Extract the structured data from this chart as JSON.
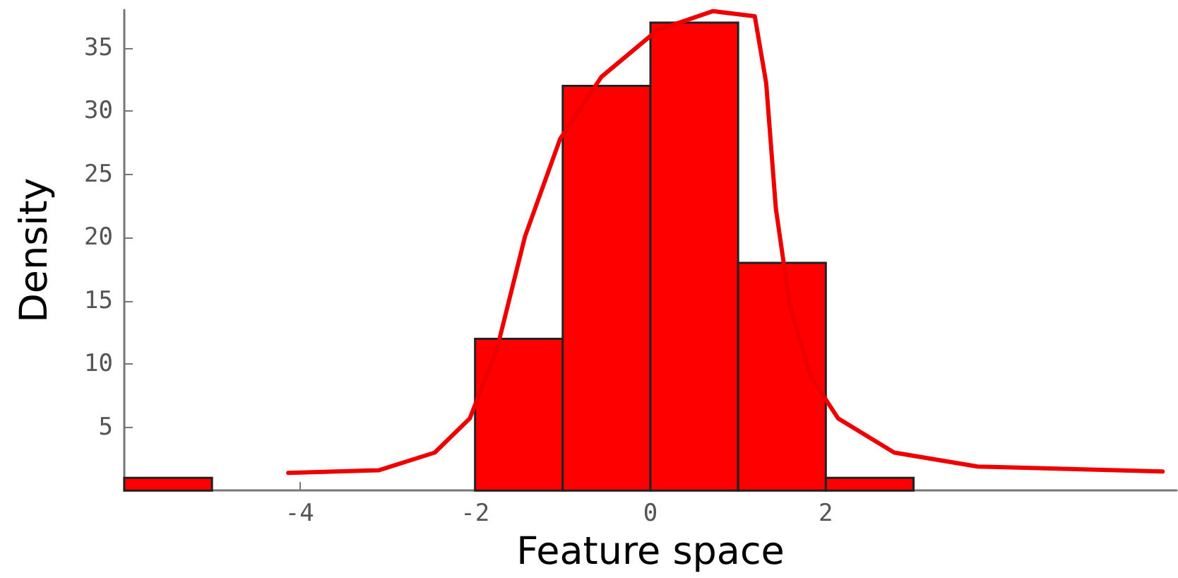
{
  "chart_data": {
    "type": "histogram",
    "xlabel": "Feature space",
    "ylabel": "Density",
    "bins": [
      -6,
      -5,
      -4,
      -3,
      -2,
      -1,
      0,
      1,
      2,
      3
    ],
    "values": [
      1,
      0,
      0,
      0,
      12,
      32,
      37,
      18,
      1
    ],
    "color": "#ff0000",
    "xlim": [
      -6,
      6
    ],
    "xticks": [
      -4,
      -2,
      0,
      2
    ],
    "ylim": [
      0,
      38
    ],
    "yticks": [
      5,
      10,
      15,
      20,
      25,
      30,
      35
    ],
    "grid": false,
    "series": [
      {
        "type": "line",
        "color": "#ee0000",
        "marker": "none",
        "x": [
          -4.13,
          -3.1,
          -2.46,
          -2.06,
          -1.75,
          -1.43,
          -1.03,
          -0.56,
          0.08,
          0.71,
          1.19,
          1.32,
          1.43,
          1.59,
          1.83,
          2.14,
          2.78,
          3.73,
          5.84
        ],
        "values": [
          1.4,
          1.6,
          3.0,
          5.7,
          11.2,
          20.1,
          27.8,
          32.7,
          36.4,
          37.9,
          37.5,
          32.2,
          22.3,
          14.6,
          9.0,
          5.7,
          3.0,
          1.9,
          1.5
        ]
      }
    ]
  }
}
